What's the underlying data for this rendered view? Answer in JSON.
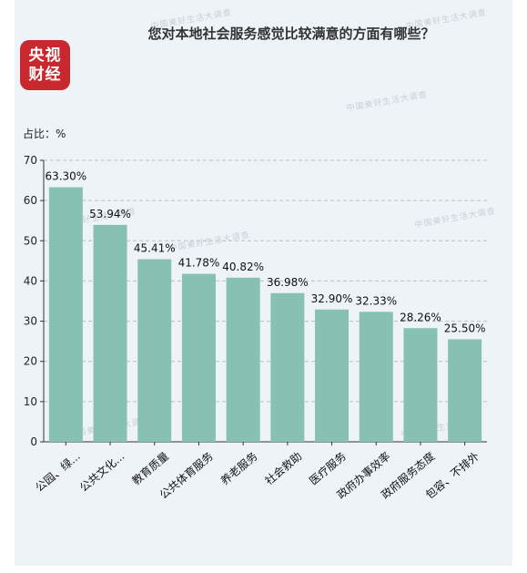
{
  "logo": {
    "line1": "央视",
    "line2": "财经",
    "color": "#c8282e"
  },
  "watermark": "中国美好生活大调查",
  "chart_data": {
    "type": "bar",
    "title": "您对本地社会服务感觉比较满意的方面有哪些？",
    "ylabel": "占比：%",
    "ylim": [
      0,
      70
    ],
    "yticks": [
      0,
      10,
      20,
      30,
      40,
      50,
      60,
      70
    ],
    "grid": true,
    "bar_color": "#86c1b4",
    "categories": [
      "公园、绿...",
      "公共文化...",
      "教育质量",
      "公共体育服务",
      "养老服务",
      "社会救助",
      "医疗服务",
      "政府办事效率",
      "政府服务态度",
      "包容、不排外"
    ],
    "values": [
      63.3,
      53.94,
      45.41,
      41.78,
      40.82,
      36.98,
      32.9,
      32.33,
      28.26,
      25.5
    ],
    "value_labels": [
      "63.30%",
      "53.94%",
      "45.41%",
      "41.78%",
      "40.82%",
      "36.98%",
      "32.90%",
      "32.33%",
      "28.26%",
      "25.50%"
    ]
  }
}
